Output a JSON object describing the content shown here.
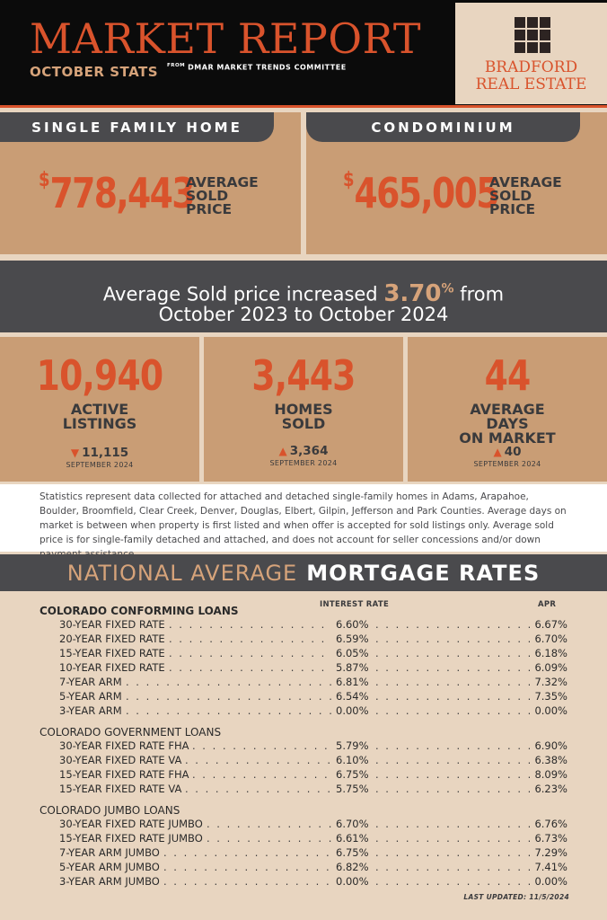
{
  "header": {
    "title": "MARKET REPORT",
    "subtitle": "OCTOBER STATS",
    "from": "FROM",
    "committee": "DMAR MARKET TRENDS COMMITTEE",
    "logo_line1": "BRADFORD",
    "logo_line2": "REAL ESTATE"
  },
  "single_family": {
    "tab": "SINGLE FAMILY HOME",
    "currency": "$",
    "price": "778,443",
    "label1": "AVERAGE",
    "label2": "SOLD",
    "label3": "PRICE"
  },
  "condo": {
    "tab": "CONDOMINIUM",
    "currency": "$",
    "price": "465,005",
    "label1": "AVERAGE",
    "label2": "SOLD",
    "label3": "PRICE"
  },
  "banner": {
    "pre": "Average Sold price increased",
    "pct": "3.70",
    "pct_sign": "%",
    "post": "from",
    "line2": "October 2023 to October 2024"
  },
  "stats": [
    {
      "value": "10,940",
      "label1": "ACTIVE",
      "label2": "LISTINGS",
      "label3": "",
      "direction": "down",
      "prev": "11,115",
      "sub": "SEPTEMBER 2024"
    },
    {
      "value": "3,443",
      "label1": "HOMES",
      "label2": "SOLD",
      "label3": "",
      "direction": "up",
      "prev": "3,364",
      "sub": "SEPTEMBER 2024"
    },
    {
      "value": "44",
      "label1": "AVERAGE",
      "label2": "DAYS",
      "label3": "ON MARKET",
      "direction": "up",
      "prev": "40",
      "sub": "SEPTEMBER 2024"
    }
  ],
  "disclaimer": "Statistics represent data collected for attached and detached single-family homes in Adams, Arapahoe, Boulder, Broomfield, Clear Creek, Denver, Douglas, Elbert, Gilpin, Jefferson and Park Counties. Average days on market is between when property is first listed and when offer is accepted for sold listings only. Average sold price is for single-family detached and attached, and does not account for seller concessions and/or down payment assistance.",
  "mortgage": {
    "heading_light": "NATIONAL AVERAGE",
    "heading_bold": "MORTGAGE RATES",
    "col_interest": "INTEREST RATE",
    "col_apr": "APR",
    "groups": [
      {
        "title": "COLORADO CONFORMING LOANS",
        "rows": [
          {
            "name": "30-YEAR FIXED RATE",
            "rate": "6.60%",
            "apr": "6.67%"
          },
          {
            "name": "20-YEAR FIXED RATE",
            "rate": "6.59%",
            "apr": "6.70%"
          },
          {
            "name": "15-YEAR FIXED RATE",
            "rate": "6.05%",
            "apr": "6.18%"
          },
          {
            "name": "10-YEAR FIXED RATE",
            "rate": "5.87%",
            "apr": "6.09%"
          },
          {
            "name": "7-YEAR ARM",
            "rate": "6.81%",
            "apr": "7.32%"
          },
          {
            "name": "5-YEAR ARM",
            "rate": "6.54%",
            "apr": "7.35%"
          },
          {
            "name": "3-YEAR ARM",
            "rate": "0.00%",
            "apr": "0.00%"
          }
        ]
      },
      {
        "title": "COLORADO GOVERNMENT LOANS",
        "rows": [
          {
            "name": "30-YEAR FIXED RATE FHA",
            "rate": "5.79%",
            "apr": "6.90%"
          },
          {
            "name": "30-YEAR FIXED RATE VA",
            "rate": "6.10%",
            "apr": "6.38%"
          },
          {
            "name": "15-YEAR FIXED RATE FHA",
            "rate": "6.75%",
            "apr": "8.09%"
          },
          {
            "name": "15-YEAR FIXED RATE VA",
            "rate": "5.75%",
            "apr": "6.23%"
          }
        ]
      },
      {
        "title": "COLORADO JUMBO LOANS",
        "rows": [
          {
            "name": "30-YEAR FIXED RATE JUMBO",
            "rate": "6.70%",
            "apr": "6.76%"
          },
          {
            "name": "15-YEAR FIXED RATE JUMBO",
            "rate": "6.61%",
            "apr": "6.73%"
          },
          {
            "name": "7-YEAR ARM JUMBO",
            "rate": "6.75%",
            "apr": "7.29%"
          },
          {
            "name": "5-YEAR ARM JUMBO",
            "rate": "6.82%",
            "apr": "7.41%"
          },
          {
            "name": "3-YEAR ARM JUMBO",
            "rate": "0.00%",
            "apr": "0.00%"
          }
        ]
      }
    ],
    "last_updated": "LAST UPDATED: 11/5/2024"
  },
  "colors": {
    "accent": "#d9532c",
    "tan": "#c99d75",
    "charcoal": "#4a4a4d",
    "cream": "#e8d5c0",
    "gold": "#d6a37a"
  }
}
